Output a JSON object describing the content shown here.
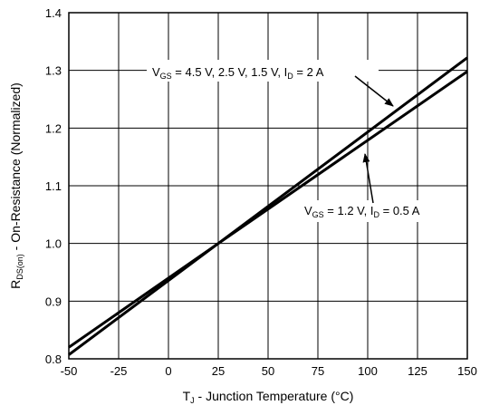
{
  "chart_data": {
    "type": "line",
    "xlabel": {
      "main": "T",
      "sub": "J",
      "rest": " - Junction Temperature (°C)"
    },
    "ylabel": {
      "main": "R",
      "sub": "DS(on)",
      "rest": " - On-Resistance (Normalized)"
    },
    "xlim": [
      -50,
      150
    ],
    "ylim": [
      0.8,
      1.4
    ],
    "xticks": [
      -50,
      -25,
      0,
      25,
      50,
      75,
      100,
      125,
      150
    ],
    "yticks": [
      0.8,
      0.9,
      1.0,
      1.1,
      1.2,
      1.3,
      1.4
    ],
    "xtick_labels": [
      "-50",
      "-25",
      "0",
      "25",
      "50",
      "75",
      "100",
      "125",
      "150"
    ],
    "ytick_labels": [
      "0.8",
      "0.9",
      "1.0",
      "1.1",
      "1.2",
      "1.3",
      "1.4"
    ],
    "grid": true,
    "series": [
      {
        "x": [
          -50,
          25,
          150
        ],
        "y": [
          0.82,
          1.0,
          1.322
        ]
      },
      {
        "x": [
          -50,
          25,
          150
        ],
        "y": [
          0.807,
          1.0,
          1.298
        ]
      }
    ],
    "annotations": [
      {
        "segments": [
          [
            "V",
            ""
          ],
          [
            "GS",
            "sub"
          ],
          [
            " = 4.5 V, 2.5 V, 1.5 V, I",
            ""
          ],
          [
            "D",
            "sub"
          ],
          [
            " = 2 A",
            ""
          ]
        ]
      },
      {
        "segments": [
          [
            "V",
            ""
          ],
          [
            "GS",
            "sub"
          ],
          [
            " = 1.2 V, I",
            ""
          ],
          [
            "D",
            "sub"
          ],
          [
            " = 0.5 A",
            ""
          ]
        ]
      }
    ]
  }
}
